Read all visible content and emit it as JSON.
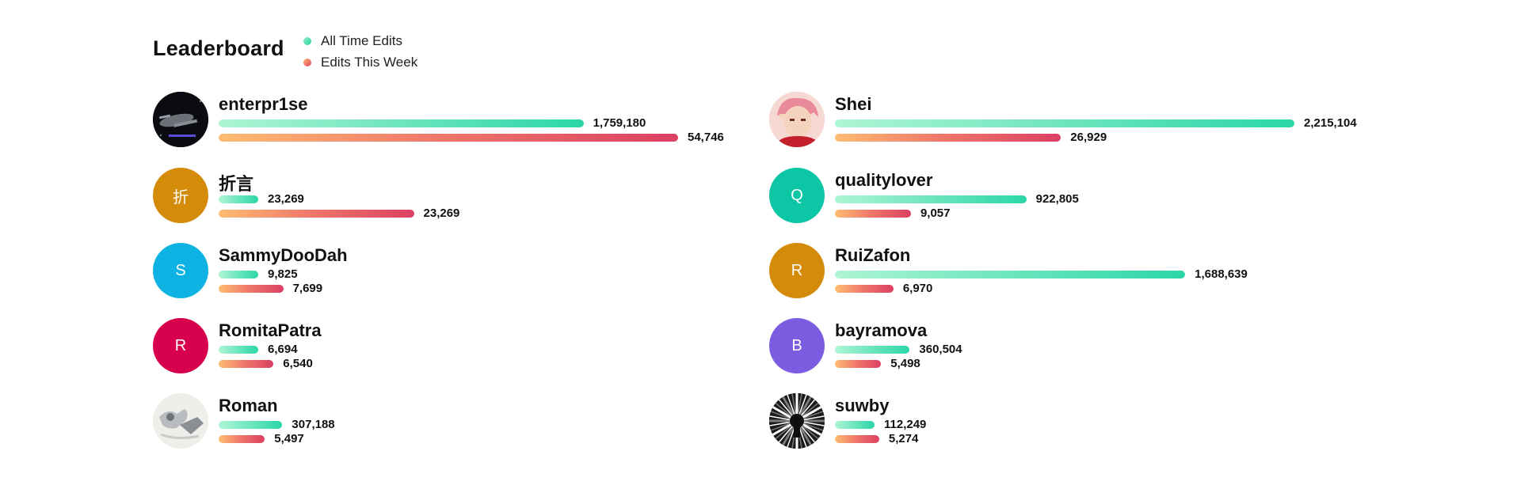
{
  "header": {
    "title": "Leaderboard",
    "legend": [
      {
        "label": "All Time Edits",
        "color": "#2bd6a8"
      },
      {
        "label": "Edits This Week",
        "color": "#e04a5e"
      }
    ]
  },
  "chart_data": {
    "type": "bar",
    "title": "Leaderboard",
    "series_names": [
      "All Time Edits",
      "Edits This Week"
    ],
    "max_all_time": 2215104,
    "max_week": 54746,
    "entries": [
      {
        "name": "enterpr1se",
        "all_time": 1759180,
        "all_time_label": "1,759,180",
        "week": 54746,
        "week_label": "54,746",
        "avatar": {
          "kind": "image",
          "icon": "starship-photo-icon",
          "color": "#0b0b12"
        }
      },
      {
        "name": "折言",
        "all_time": 23269,
        "all_time_label": "23,269",
        "week": 23269,
        "week_label": "23,269",
        "avatar": {
          "kind": "letter",
          "letter": "折",
          "color": "#d48b0a"
        }
      },
      {
        "name": "SammyDooDah",
        "all_time": 9825,
        "all_time_label": "9,825",
        "week": 7699,
        "week_label": "7,699",
        "avatar": {
          "kind": "letter",
          "letter": "S",
          "color": "#0fb3e3"
        }
      },
      {
        "name": "RomitaPatra",
        "all_time": 6694,
        "all_time_label": "6,694",
        "week": 6540,
        "week_label": "6,540",
        "avatar": {
          "kind": "letter",
          "letter": "R",
          "color": "#d6004c"
        }
      },
      {
        "name": "Roman",
        "all_time": 307188,
        "all_time_label": "307,188",
        "week": 5497,
        "week_label": "5,497",
        "avatar": {
          "kind": "image",
          "icon": "sketch-photo-icon",
          "color": "#e8e8e4"
        }
      },
      {
        "name": "Shei",
        "all_time": 2215104,
        "all_time_label": "2,215,104",
        "week": 26929,
        "week_label": "26,929",
        "avatar": {
          "kind": "image",
          "icon": "anime-portrait-icon",
          "color": "#f3b9c4"
        }
      },
      {
        "name": "qualitylover",
        "all_time": 922805,
        "all_time_label": "922,805",
        "week": 9057,
        "week_label": "9,057",
        "avatar": {
          "kind": "letter",
          "letter": "Q",
          "color": "#0cc6a6"
        }
      },
      {
        "name": "RuiZafon",
        "all_time": 1688639,
        "all_time_label": "1,688,639",
        "week": 6970,
        "week_label": "6,970",
        "avatar": {
          "kind": "letter",
          "letter": "R",
          "color": "#d48b0a"
        }
      },
      {
        "name": "bayramova",
        "all_time": 360504,
        "all_time_label": "360,504",
        "week": 5498,
        "week_label": "5,498",
        "avatar": {
          "kind": "letter",
          "letter": "B",
          "color": "#7c5ce0"
        }
      },
      {
        "name": "suwby",
        "all_time": 112249,
        "all_time_label": "112,249",
        "week": 5274,
        "week_label": "5,274",
        "avatar": {
          "kind": "image",
          "icon": "starburst-photo-icon",
          "color": "#1a1a1a"
        }
      }
    ]
  }
}
